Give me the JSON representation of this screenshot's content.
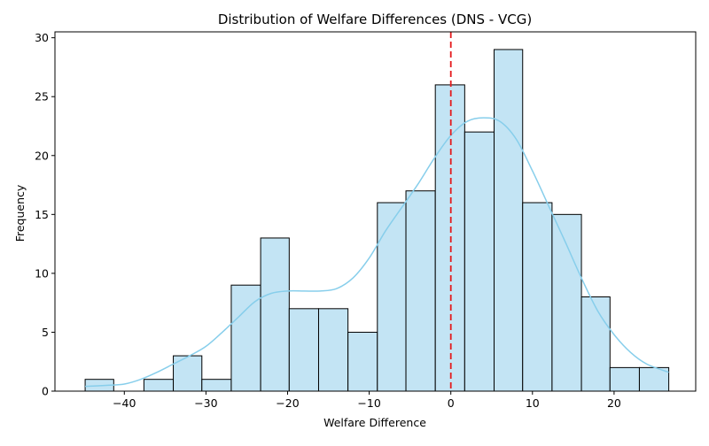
{
  "chart_data": {
    "type": "bar",
    "subtype": "histogram",
    "title": "Distribution of Welfare Differences (DNS - VCG)",
    "xlabel": "Welfare Difference",
    "ylabel": "Frequency",
    "xlim": [
      -48.5,
      30.0
    ],
    "ylim": [
      0,
      30.5
    ],
    "xticks": [
      -40,
      -30,
      -20,
      -10,
      0,
      10,
      20
    ],
    "xtick_labels": [
      "−40",
      "−30",
      "−20",
      "−10",
      "0",
      "10",
      "20"
    ],
    "yticks": [
      0,
      5,
      10,
      15,
      20,
      25,
      30
    ],
    "ytick_labels": [
      "0",
      "5",
      "10",
      "15",
      "20",
      "25",
      "30"
    ],
    "bin_edges": [
      -44.8,
      -41.3,
      -37.6,
      -34.0,
      -30.5,
      -26.9,
      -23.3,
      -19.8,
      -16.2,
      -12.6,
      -9.0,
      -5.5,
      -1.9,
      1.7,
      5.3,
      8.8,
      12.4,
      16.0,
      19.5,
      23.1,
      26.7
    ],
    "values": [
      1,
      0,
      1,
      3,
      1,
      9,
      13,
      7,
      7,
      5,
      16,
      17,
      26,
      22,
      29,
      16,
      15,
      8,
      2,
      2
    ],
    "bar_fill": "#c3e4f4",
    "bar_edge": "#000000",
    "kde": {
      "color": "#87ceeb",
      "x": [
        -44.8,
        -42,
        -40,
        -38,
        -36,
        -34,
        -32,
        -30,
        -28,
        -26,
        -24,
        -22,
        -20,
        -18,
        -16,
        -14,
        -12,
        -10,
        -8,
        -6,
        -4,
        -2,
        0,
        2,
        4,
        6,
        8,
        10,
        12,
        14,
        16,
        18,
        20,
        22,
        24,
        26.7
      ],
      "y": [
        0.4,
        0.5,
        0.6,
        1.0,
        1.6,
        2.3,
        3.0,
        3.8,
        5.0,
        6.3,
        7.6,
        8.3,
        8.5,
        8.5,
        8.5,
        8.7,
        9.6,
        11.3,
        13.6,
        15.6,
        17.6,
        19.8,
        21.7,
        22.9,
        23.2,
        22.9,
        21.4,
        18.7,
        15.7,
        12.7,
        9.6,
        6.8,
        4.8,
        3.3,
        2.3,
        1.6
      ]
    },
    "reference_line": {
      "x": 0,
      "color": "#e41a1c",
      "style": "dashed"
    },
    "grid": false,
    "legend": "none"
  }
}
